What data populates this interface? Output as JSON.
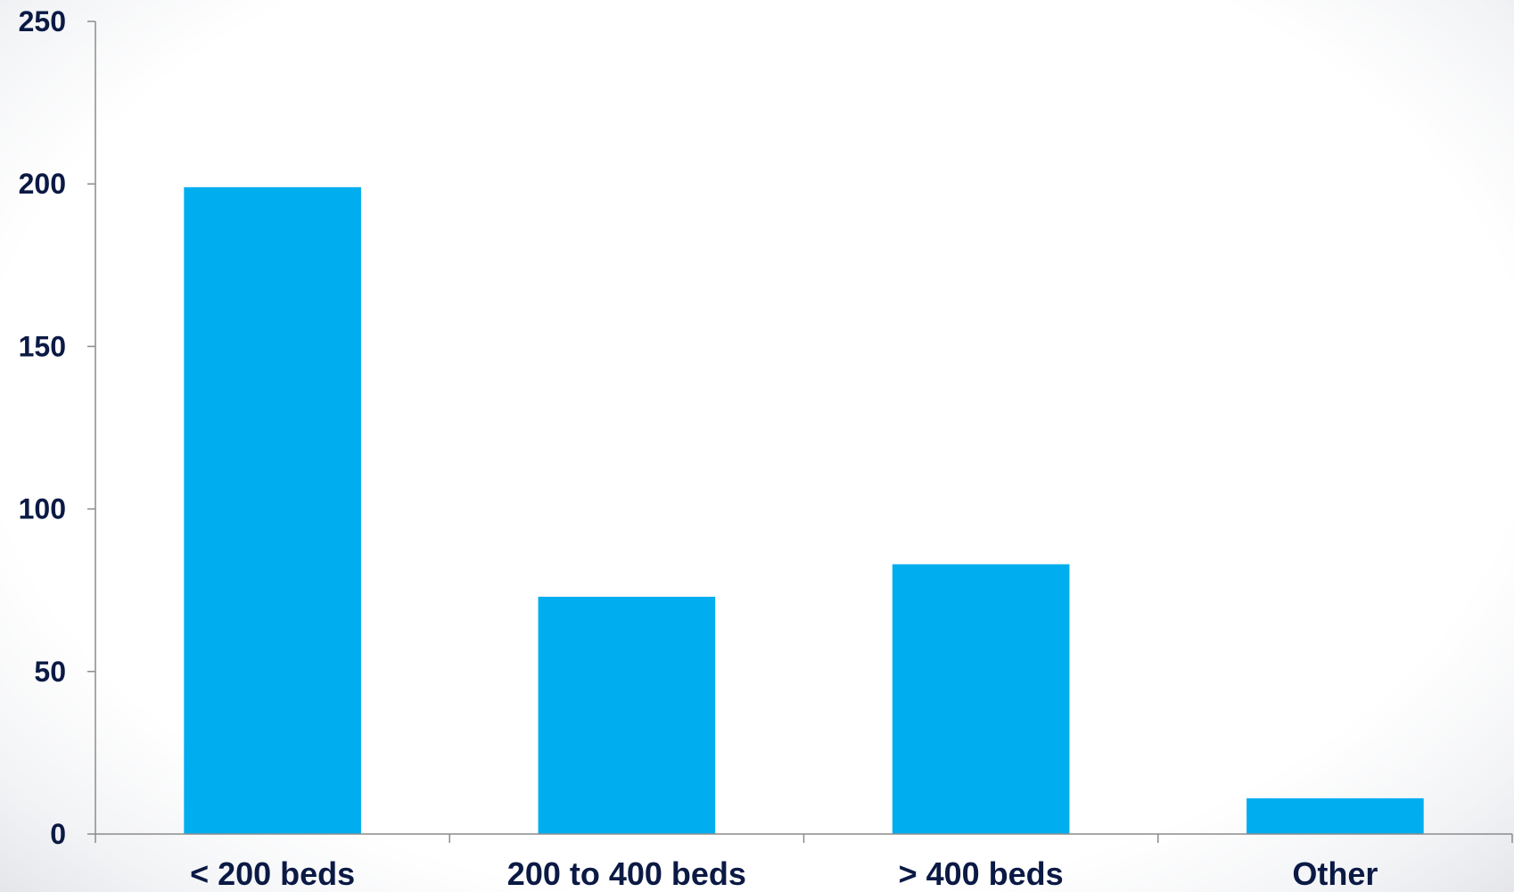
{
  "chart_data": {
    "type": "bar",
    "categories": [
      "< 200 beds",
      "200 to 400 beds",
      "> 400 beds",
      "Other"
    ],
    "values": [
      199,
      73,
      83,
      11
    ],
    "title": "",
    "xlabel": "",
    "ylabel": "",
    "ylim": [
      0,
      250
    ],
    "yticks": [
      0,
      50,
      100,
      150,
      200,
      250
    ],
    "grid": false,
    "legend": "none",
    "colors": {
      "bar": "#00AEEF",
      "axis": "#8c8c8c",
      "label": "#0b1a44"
    }
  }
}
